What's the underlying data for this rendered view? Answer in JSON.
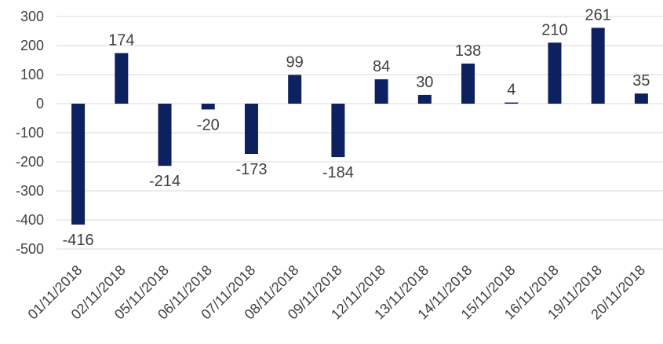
{
  "chart_data": {
    "type": "bar",
    "title": "",
    "xlabel": "",
    "ylabel": "",
    "ylim": [
      -500,
      300
    ],
    "yticks": [
      300,
      200,
      100,
      0,
      -100,
      -200,
      -300,
      -400,
      -500
    ],
    "grid": true,
    "legend": "none",
    "bar_color": "#0d2160",
    "categories": [
      "01/11/2018",
      "02/11/2018",
      "05/11/2018",
      "06/11/2018",
      "07/11/2018",
      "08/11/2018",
      "09/11/2018",
      "12/11/2018",
      "13/11/2018",
      "14/11/2018",
      "15/11/2018",
      "16/11/2018",
      "19/11/2018",
      "20/11/2018"
    ],
    "values": [
      -416,
      174,
      -214,
      -20,
      -173,
      99,
      -184,
      84,
      30,
      138,
      4,
      210,
      261,
      35
    ]
  }
}
